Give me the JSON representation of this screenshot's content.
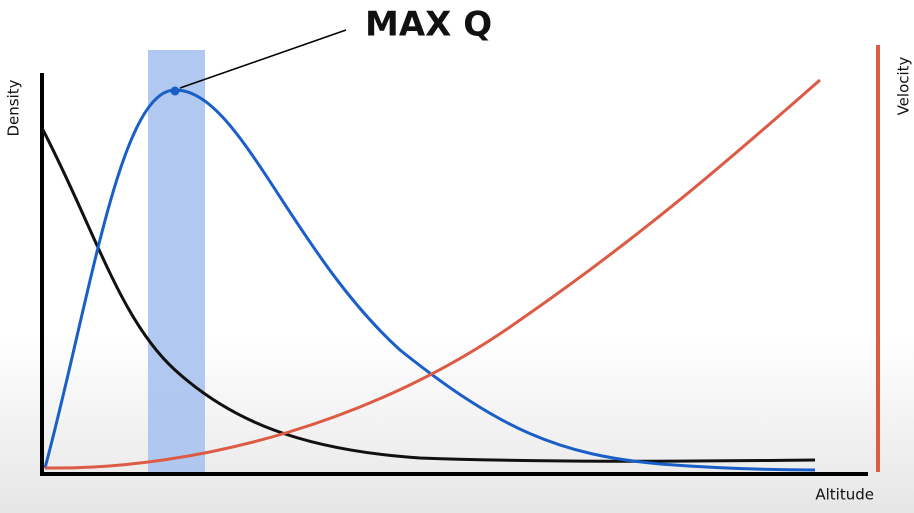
{
  "title": "MAX Q",
  "y_axis_label": "Density",
  "y2_axis_label": "Velocity",
  "x_axis_label": "Altitude"
}
